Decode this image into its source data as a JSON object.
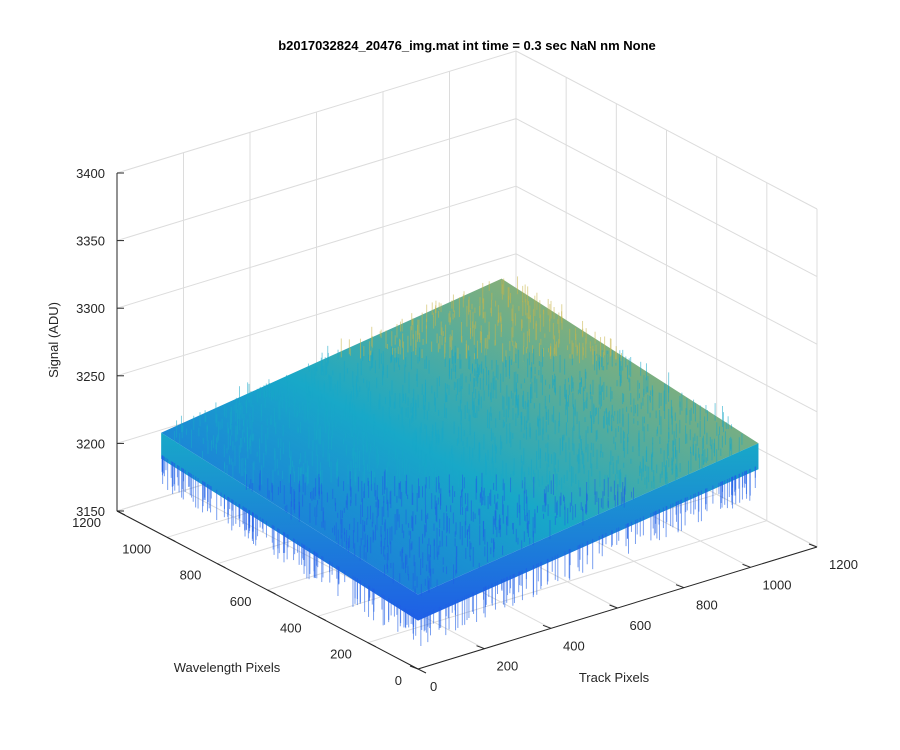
{
  "figure": {
    "title": "b2017032824_20476_img.mat int time = 0.3 sec  NaN nm None"
  },
  "colors": {
    "low": "#1f5fe6",
    "mid": "#18a8c8",
    "high": "#c8b448",
    "axis": "#262626",
    "grid": "#dcdcdc"
  },
  "chart_data": {
    "type": "surface",
    "title": "b2017032824_20476_img.mat int time = 0.3 sec  NaN nm None",
    "xlabel": "Track Pixels",
    "ylabel": "Wavelength Pixels",
    "zlabel": "Signal (ADU)",
    "xlim": [
      0,
      1200
    ],
    "ylim": [
      0,
      1200
    ],
    "zlim": [
      3150,
      3400
    ],
    "x_ticks": [
      "0",
      "200",
      "400",
      "600",
      "800",
      "1000",
      "1200"
    ],
    "y_ticks": [
      "0",
      "200",
      "400",
      "600",
      "800",
      "1000",
      "1200"
    ],
    "z_ticks": [
      "3150",
      "3200",
      "3250",
      "3300",
      "3350",
      "3400"
    ],
    "grid": true,
    "surface_extent": {
      "x": [
        0,
        1024
      ],
      "y": [
        0,
        1024
      ]
    },
    "surface_corners": [
      {
        "x": 0,
        "y": 0,
        "z": 3205
      },
      {
        "x": 1024,
        "y": 0,
        "z": 3240
      },
      {
        "x": 1024,
        "y": 1024,
        "z": 3262
      },
      {
        "x": 0,
        "y": 1024,
        "z": 3225
      }
    ]
  }
}
